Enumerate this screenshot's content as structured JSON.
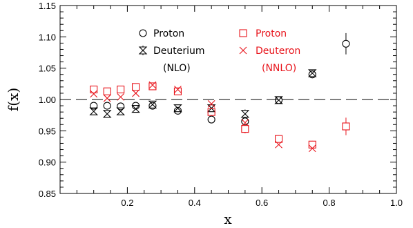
{
  "chart_data": {
    "type": "scatter",
    "xlabel": "x",
    "ylabel": "f(x)",
    "xlim": [
      0.0,
      1.0
    ],
    "ylim": [
      0.85,
      1.15
    ],
    "x_ticks": [
      0.2,
      0.4,
      0.6,
      0.8,
      1.0
    ],
    "x_tick_labels": [
      "0.2",
      "0.4",
      "0.6",
      "0.8",
      "1.0"
    ],
    "y_ticks": [
      0.85,
      0.9,
      0.95,
      1.0,
      1.05,
      1.1,
      1.15
    ],
    "y_tick_labels": [
      "0.85",
      "0.90",
      "0.95",
      "1.00",
      "1.05",
      "1.10",
      "1.15"
    ],
    "reference_line": {
      "y": 1.0,
      "style": "dashed"
    },
    "grid": false,
    "legend": {
      "groups": [
        {
          "label": "(NLO)",
          "color": "#000000",
          "entries": [
            "Proton",
            "Deuterium"
          ]
        },
        {
          "label": "(NNLO)",
          "color": "#e8141b",
          "entries": [
            "Proton",
            "Deuteron"
          ]
        }
      ]
    },
    "series": [
      {
        "name": "Proton",
        "group": "NLO",
        "marker": "circle",
        "color": "#000000",
        "points": [
          {
            "x": 0.1,
            "y": 0.99,
            "err": 0.005
          },
          {
            "x": 0.14,
            "y": 0.99,
            "err": 0.005
          },
          {
            "x": 0.18,
            "y": 0.989,
            "err": 0.005
          },
          {
            "x": 0.225,
            "y": 0.99,
            "err": 0.005
          },
          {
            "x": 0.275,
            "y": 0.99,
            "err": 0.005
          },
          {
            "x": 0.35,
            "y": 0.982,
            "err": 0.005
          },
          {
            "x": 0.45,
            "y": 0.968,
            "err": 0.005
          },
          {
            "x": 0.55,
            "y": 0.965,
            "err": 0.006
          },
          {
            "x": 0.65,
            "y": 0.999,
            "err": 0.006
          },
          {
            "x": 0.75,
            "y": 1.04,
            "err": 0.006
          },
          {
            "x": 0.85,
            "y": 1.089,
            "err": 0.017
          }
        ]
      },
      {
        "name": "Deuterium",
        "group": "NLO",
        "marker": "hourglass",
        "color": "#000000",
        "points": [
          {
            "x": 0.1,
            "y": 0.981,
            "err": 0.005
          },
          {
            "x": 0.14,
            "y": 0.977,
            "err": 0.005
          },
          {
            "x": 0.18,
            "y": 0.981,
            "err": 0.005
          },
          {
            "x": 0.225,
            "y": 0.985,
            "err": 0.005
          },
          {
            "x": 0.275,
            "y": 0.992,
            "err": 0.005
          },
          {
            "x": 0.35,
            "y": 0.986,
            "err": 0.005
          },
          {
            "x": 0.45,
            "y": 0.986,
            "err": 0.005
          },
          {
            "x": 0.55,
            "y": 0.977,
            "err": 0.007
          },
          {
            "x": 0.65,
            "y": 0.999,
            "err": 0.005
          },
          {
            "x": 0.75,
            "y": 1.042,
            "err": 0.005
          }
        ]
      },
      {
        "name": "Proton",
        "group": "NNLO",
        "marker": "square",
        "color": "#e8141b",
        "points": [
          {
            "x": 0.1,
            "y": 1.016,
            "err": 0.004
          },
          {
            "x": 0.14,
            "y": 1.013,
            "err": 0.004
          },
          {
            "x": 0.18,
            "y": 1.016,
            "err": 0.004
          },
          {
            "x": 0.225,
            "y": 1.02,
            "err": 0.004
          },
          {
            "x": 0.275,
            "y": 1.021,
            "err": 0.005
          },
          {
            "x": 0.35,
            "y": 1.013,
            "err": 0.005
          },
          {
            "x": 0.45,
            "y": 0.98,
            "err": 0.006
          },
          {
            "x": 0.55,
            "y": 0.953,
            "err": 0.007
          },
          {
            "x": 0.65,
            "y": 0.937,
            "err": 0.006
          },
          {
            "x": 0.75,
            "y": 0.928,
            "err": 0.006
          },
          {
            "x": 0.85,
            "y": 0.957,
            "err": 0.014
          }
        ]
      },
      {
        "name": "Deuteron",
        "group": "NNLO",
        "marker": "cross",
        "color": "#e8141b",
        "points": [
          {
            "x": 0.1,
            "y": 1.009
          },
          {
            "x": 0.14,
            "y": 1.002
          },
          {
            "x": 0.18,
            "y": 1.004
          },
          {
            "x": 0.225,
            "y": 1.01
          },
          {
            "x": 0.275,
            "y": 1.023
          },
          {
            "x": 0.35,
            "y": 1.016
          },
          {
            "x": 0.45,
            "y": 0.993
          },
          {
            "x": 0.55,
            "y": 0.963
          },
          {
            "x": 0.65,
            "y": 0.928
          },
          {
            "x": 0.75,
            "y": 0.922
          }
        ]
      }
    ]
  }
}
